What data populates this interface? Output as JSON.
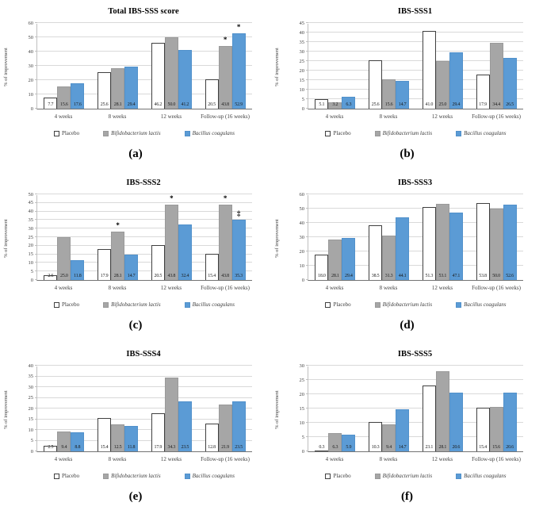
{
  "figure": {
    "ylabel": "% of improvement",
    "categories": [
      "4 weeks",
      "8 weeks",
      "12 weeks",
      "Follow-up (16 weeks)"
    ],
    "legend": [
      {
        "label": "Placebo",
        "swatch": "white-square-icon",
        "fill": "#ffffff",
        "border": "#404040",
        "italic": false
      },
      {
        "label": "Bifidobacterium lactis",
        "swatch": "gray-square-icon",
        "fill": "#a6a6a6",
        "border": "#9a9a9a",
        "italic": true
      },
      {
        "label": "Bacillus coagulans",
        "swatch": "blue-square-icon",
        "fill": "#5b9bd5",
        "border": "#5191cb",
        "italic": true
      }
    ],
    "colors": {
      "placebo_fill": "#ffffff",
      "placebo_border": "#404040",
      "lactis_fill": "#a6a6a6",
      "coagulans_fill": "#5b9bd5",
      "gridline": "#d9d9d9",
      "axis": "#737373",
      "text": "#404040"
    }
  },
  "chart_data": [
    {
      "type": "bar",
      "panel": "(a)",
      "title": "Total IBS-SSS score",
      "ylabel": "% of improvement",
      "ylim": [
        0,
        60
      ],
      "ystep": 10,
      "grid": true,
      "legend_position": "bottom",
      "categories": [
        "4 weeks",
        "8 weeks",
        "12 weeks",
        "Follow-up (16 weeks)"
      ],
      "series": [
        {
          "name": "Placebo",
          "values": [
            7.7,
            25.6,
            46.2,
            20.5
          ],
          "marks": [
            "",
            "",
            "",
            ""
          ]
        },
        {
          "name": "Bifidobacterium lactis",
          "values": [
            15.6,
            28.1,
            50.0,
            43.8
          ],
          "marks": [
            "",
            "",
            "",
            "*"
          ]
        },
        {
          "name": "Bacillus coagulans",
          "values": [
            17.6,
            29.4,
            41.2,
            52.9
          ],
          "marks": [
            "",
            "",
            "",
            "*"
          ]
        }
      ]
    },
    {
      "type": "bar",
      "panel": "(b)",
      "title": "IBS-SSS1",
      "ylabel": "% of improvement",
      "ylim": [
        0,
        45
      ],
      "ystep": 5,
      "grid": true,
      "legend_position": "bottom",
      "categories": [
        "4 weeks",
        "8 weeks",
        "12 weeks",
        "Follow-up (16 weeks)"
      ],
      "series": [
        {
          "name": "Placebo",
          "values": [
            5.1,
            25.6,
            41.0,
            17.9
          ],
          "marks": [
            "",
            "",
            "",
            ""
          ]
        },
        {
          "name": "Bifidobacterium lactis",
          "values": [
            3.2,
            15.6,
            25.0,
            34.4
          ],
          "marks": [
            "",
            "",
            "",
            ""
          ]
        },
        {
          "name": "Bacillus coagulans",
          "values": [
            6.3,
            14.7,
            29.4,
            26.5
          ],
          "marks": [
            "",
            "",
            "",
            ""
          ]
        }
      ]
    },
    {
      "type": "bar",
      "panel": "(c)",
      "title": "IBS-SSS2",
      "ylabel": "% of improvement",
      "ylim": [
        0,
        50
      ],
      "ystep": 5,
      "grid": true,
      "legend_position": "bottom",
      "categories": [
        "4 weeks",
        "8 weeks",
        "12 weeks",
        "Follow-up (16 weeks)"
      ],
      "series": [
        {
          "name": "Placebo",
          "values": [
            2.6,
            17.9,
            20.5,
            15.4
          ],
          "marks": [
            "",
            "",
            "",
            ""
          ]
        },
        {
          "name": "Bifidobacterium lactis",
          "values": [
            25.0,
            28.1,
            43.8,
            43.8
          ],
          "marks": [
            "",
            "*",
            "*",
            "*"
          ]
        },
        {
          "name": "Bacillus coagulans",
          "values": [
            11.8,
            14.7,
            32.4,
            35.3
          ],
          "marks": [
            "",
            "",
            "",
            "‡"
          ]
        }
      ]
    },
    {
      "type": "bar",
      "panel": "(d)",
      "title": "IBS-SSS3",
      "ylabel": "% of improvement",
      "ylim": [
        0,
        60
      ],
      "ystep": 10,
      "grid": true,
      "legend_position": "bottom",
      "categories": [
        "4 weeks",
        "8 weeks",
        "12 weeks",
        "Follow-up (16 weeks)"
      ],
      "series": [
        {
          "name": "Placebo",
          "values": [
            18.0,
            38.5,
            51.3,
            53.8
          ],
          "marks": [
            "",
            "",
            "",
            ""
          ]
        },
        {
          "name": "Bifidobacterium lactis",
          "values": [
            28.1,
            31.3,
            53.1,
            50.0
          ],
          "marks": [
            "",
            "",
            "",
            ""
          ]
        },
        {
          "name": "Bacillus coagulans",
          "values": [
            29.4,
            44.1,
            47.1,
            52.6
          ],
          "marks": [
            "",
            "",
            "",
            ""
          ]
        }
      ]
    },
    {
      "type": "bar",
      "panel": "(e)",
      "title": "IBS-SSS4",
      "ylabel": "% of improvement",
      "ylim": [
        0,
        40
      ],
      "ystep": 5,
      "grid": true,
      "legend_position": "bottom",
      "categories": [
        "4 weeks",
        "8 weeks",
        "12 weeks",
        "Follow-up (16 weeks)"
      ],
      "series": [
        {
          "name": "Placebo",
          "values": [
            2.5,
            15.4,
            17.9,
            12.8
          ],
          "marks": [
            "",
            "",
            "",
            ""
          ]
        },
        {
          "name": "Bifidobacterium lactis",
          "values": [
            9.4,
            12.5,
            34.3,
            21.9
          ],
          "marks": [
            "",
            "",
            "",
            ""
          ]
        },
        {
          "name": "Bacillus coagulans",
          "values": [
            8.8,
            11.8,
            23.5,
            23.5
          ],
          "marks": [
            "",
            "",
            "",
            ""
          ]
        }
      ]
    },
    {
      "type": "bar",
      "panel": "(f)",
      "title": "IBS-SSS5",
      "ylabel": "% of improvement",
      "ylim": [
        0,
        30
      ],
      "ystep": 5,
      "grid": true,
      "legend_position": "bottom",
      "categories": [
        "4 weeks",
        "8 weeks",
        "12 weeks",
        "Follow-up (16 weeks)"
      ],
      "series": [
        {
          "name": "Placebo",
          "values": [
            0.3,
            10.3,
            23.1,
            15.4
          ],
          "marks": [
            "",
            "",
            "",
            ""
          ]
        },
        {
          "name": "Bifidobacterium lactis",
          "values": [
            6.3,
            9.4,
            28.1,
            15.6
          ],
          "marks": [
            "",
            "",
            "",
            ""
          ]
        },
        {
          "name": "Bacillus coagulans",
          "values": [
            5.9,
            14.7,
            20.6,
            20.6
          ],
          "marks": [
            "",
            "",
            "",
            ""
          ]
        }
      ]
    }
  ]
}
